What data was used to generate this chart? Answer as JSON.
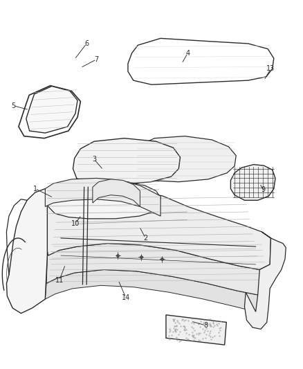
{
  "bg_color": "#ffffff",
  "line_color": "#2a2a2a",
  "label_color": "#2a2a2a",
  "fig_width": 4.38,
  "fig_height": 5.33,
  "dpi": 100,
  "annotations": {
    "1": {
      "lpos": [
        0.115,
        0.562
      ],
      "apos": [
        0.175,
        0.545
      ]
    },
    "2": {
      "lpos": [
        0.48,
        0.468
      ],
      "apos": [
        0.46,
        0.49
      ]
    },
    "3": {
      "lpos": [
        0.31,
        0.618
      ],
      "apos": [
        0.34,
        0.598
      ]
    },
    "4": {
      "lpos": [
        0.62,
        0.82
      ],
      "apos": [
        0.6,
        0.8
      ]
    },
    "5": {
      "lpos": [
        0.042,
        0.72
      ],
      "apos": [
        0.095,
        0.712
      ]
    },
    "6": {
      "lpos": [
        0.285,
        0.838
      ],
      "apos": [
        0.245,
        0.808
      ]
    },
    "7": {
      "lpos": [
        0.318,
        0.808
      ],
      "apos": [
        0.265,
        0.792
      ]
    },
    "8": {
      "lpos": [
        0.68,
        0.302
      ],
      "apos": [
        0.63,
        0.31
      ]
    },
    "9": {
      "lpos": [
        0.87,
        0.56
      ],
      "apos": [
        0.858,
        0.572
      ]
    },
    "10": {
      "lpos": [
        0.248,
        0.496
      ],
      "apos": [
        0.268,
        0.512
      ]
    },
    "11": {
      "lpos": [
        0.195,
        0.388
      ],
      "apos": [
        0.215,
        0.418
      ]
    },
    "13": {
      "lpos": [
        0.895,
        0.79
      ],
      "apos": [
        0.872,
        0.768
      ]
    },
    "14": {
      "lpos": [
        0.415,
        0.355
      ],
      "apos": [
        0.39,
        0.388
      ]
    }
  }
}
